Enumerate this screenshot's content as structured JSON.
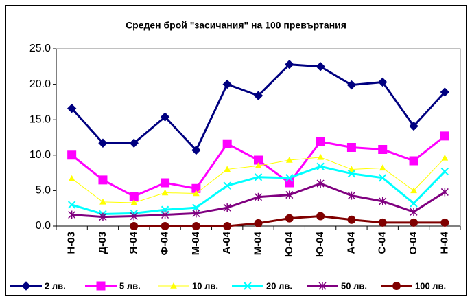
{
  "chart_data": {
    "type": "line",
    "title": "Среден брой \"засичания\" на 100 превъртания",
    "categories": [
      "Н-03",
      "Д-03",
      "Я-04",
      "Ф-04",
      "М-04",
      "А-04",
      "М-04",
      "Ю-04",
      "Ю-04",
      "А-04",
      "С-04",
      "О-04",
      "Н-04"
    ],
    "series": [
      {
        "name": "2 лв.",
        "color": "#000080",
        "marker": "diamond",
        "values": [
          16.6,
          11.7,
          11.7,
          15.4,
          10.7,
          20.0,
          18.4,
          22.8,
          22.5,
          19.9,
          20.3,
          14.1,
          18.9
        ]
      },
      {
        "name": "5 лв.",
        "color": "#ff00ff",
        "marker": "square",
        "values": [
          10.0,
          6.5,
          4.2,
          6.1,
          5.3,
          11.6,
          9.3,
          6.1,
          11.9,
          11.1,
          10.8,
          9.2,
          12.7
        ]
      },
      {
        "name": "10 лв.",
        "color": "#ffff00",
        "marker": "triangle",
        "values": [
          6.7,
          3.4,
          3.3,
          4.7,
          4.6,
          8.0,
          8.5,
          9.3,
          9.7,
          8.0,
          8.2,
          5.0,
          9.6
        ]
      },
      {
        "name": "20 лв.",
        "color": "#00ffff",
        "marker": "x",
        "values": [
          3.0,
          1.7,
          1.8,
          2.3,
          2.6,
          5.7,
          6.9,
          6.8,
          8.4,
          7.4,
          6.8,
          3.2,
          7.7
        ]
      },
      {
        "name": "50 лв.",
        "color": "#800080",
        "marker": "star",
        "values": [
          1.6,
          1.3,
          1.4,
          1.6,
          1.8,
          2.6,
          4.1,
          4.4,
          6.0,
          4.3,
          3.5,
          2.0,
          4.8
        ]
      },
      {
        "name": "100 лв.",
        "color": "#800000",
        "marker": "circle",
        "values": [
          null,
          null,
          0.0,
          0.0,
          0.0,
          0.0,
          0.4,
          1.1,
          1.4,
          0.9,
          0.5,
          0.5,
          0.5
        ]
      }
    ],
    "ylim": [
      0,
      25
    ],
    "yticks": [
      {
        "value": 0,
        "label": "0.0"
      },
      {
        "value": 5,
        "label": "5.0"
      },
      {
        "value": 10,
        "label": "10.0"
      },
      {
        "value": 15,
        "label": "15.0"
      },
      {
        "value": 20,
        "label": "20.0"
      },
      {
        "value": 25,
        "label": "25.0"
      }
    ],
    "grid": false,
    "legend": "bottom"
  }
}
